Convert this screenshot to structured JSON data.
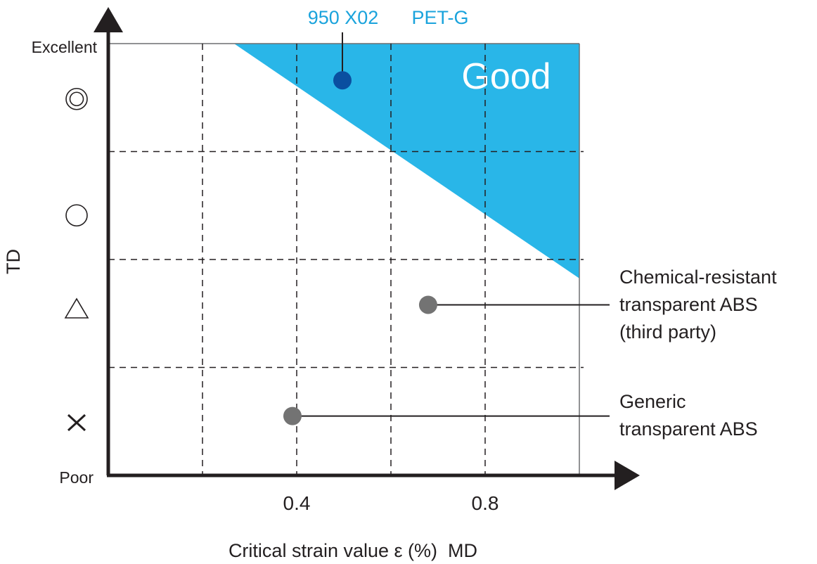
{
  "chart_data": {
    "type": "scatter",
    "title": "",
    "xlabel": "Critical strain value ε (%)  MD",
    "ylabel": "TD",
    "xlim": [
      0,
      1.0
    ],
    "x_ticks": [
      0.2,
      0.4,
      0.6,
      0.8
    ],
    "x_tick_labels": [
      {
        "value": 0.4,
        "label": "0.4"
      },
      {
        "value": 0.8,
        "label": "0.8"
      }
    ],
    "y_scale": "ordinal rating",
    "ylim": [
      0,
      4
    ],
    "y_end_labels": {
      "top": "Excellent",
      "bottom": "Poor"
    },
    "y_rating_symbols": [
      {
        "level": 0.5,
        "symbol": "×",
        "name": "cross"
      },
      {
        "level": 1.5,
        "symbol": "△",
        "name": "triangle"
      },
      {
        "level": 2.5,
        "symbol": "○",
        "name": "circle"
      },
      {
        "level": 3.5,
        "symbol": "◎",
        "name": "double-circle"
      }
    ],
    "y_grid": [
      1,
      2,
      3
    ],
    "grid": true,
    "good_region": {
      "label": "Good",
      "color": "#29b6e8",
      "polygon": [
        [
          0.267,
          4.0
        ],
        [
          1.0,
          4.0
        ],
        [
          1.0,
          1.825
        ]
      ]
    },
    "series": [
      {
        "name": "950 X02 PET-G",
        "x": 0.497,
        "y": 3.66,
        "color": "#0a4fa0",
        "label_color": "#1aa3dc",
        "label_parts": [
          "950 X02",
          "PET-G"
        ],
        "label_position": "top"
      },
      {
        "name": "Chemical-resistant transparent ABS (third party)",
        "x": 0.679,
        "y": 1.58,
        "color": "#737373",
        "label_lines": [
          "Chemical-resistant",
          "transparent ABS",
          "(third party)"
        ],
        "label_position": "right"
      },
      {
        "name": "Generic transparent ABS",
        "x": 0.391,
        "y": 0.55,
        "color": "#737373",
        "label_lines": [
          "Generic",
          "transparent ABS"
        ],
        "label_position": "right"
      }
    ]
  }
}
